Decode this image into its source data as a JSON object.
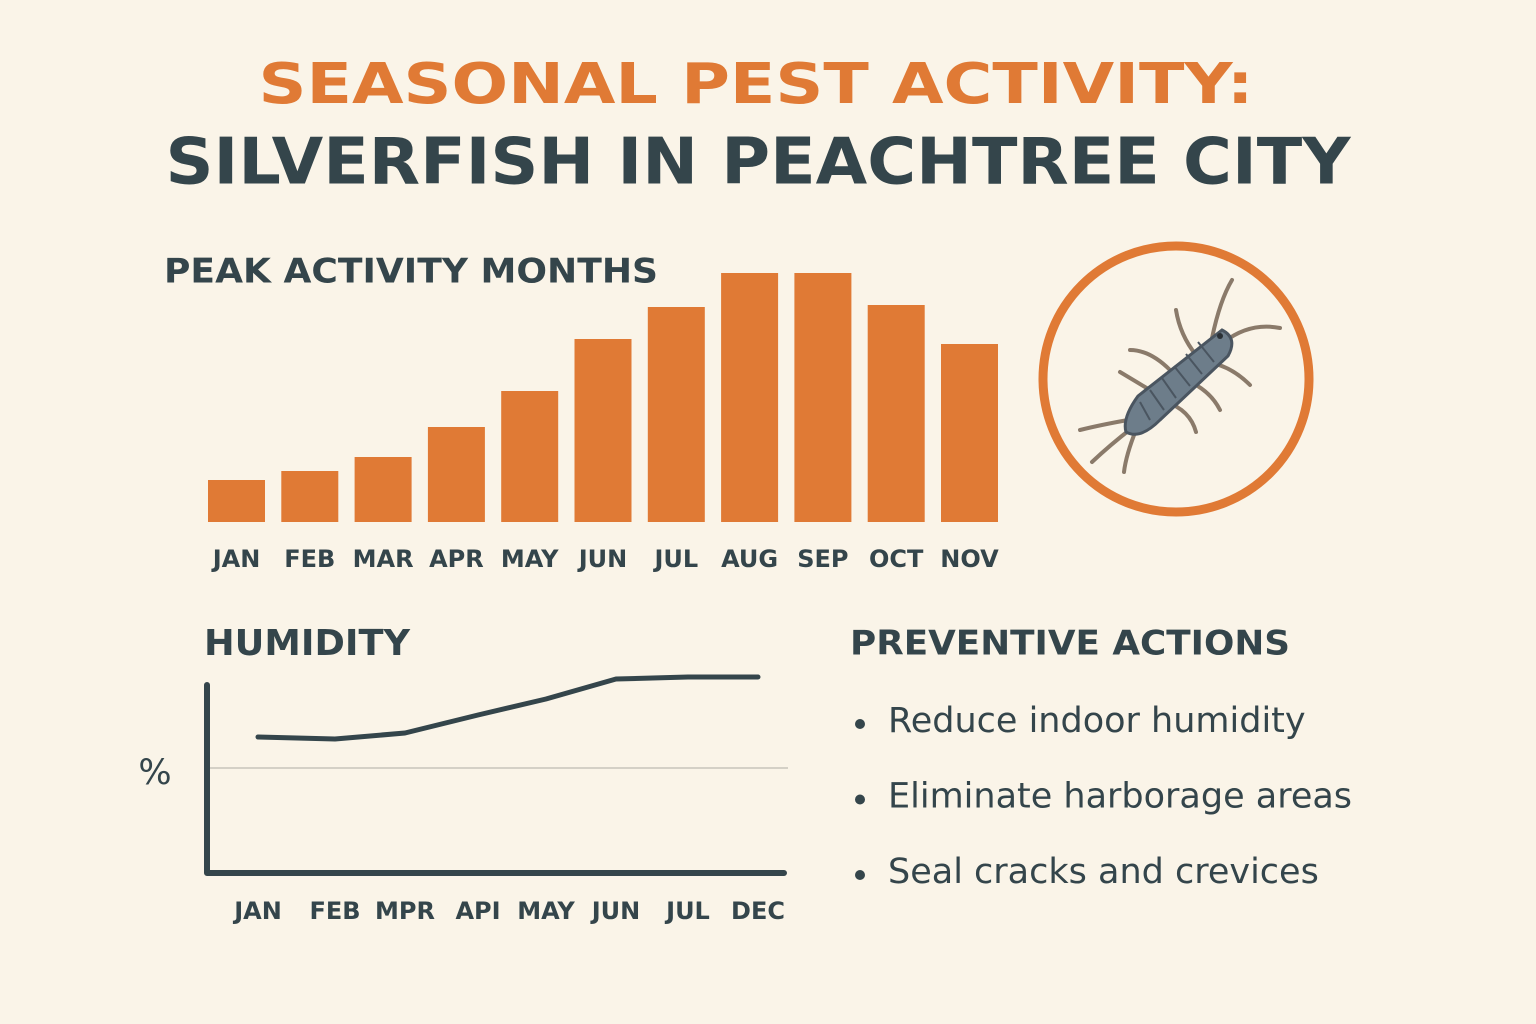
{
  "title_line1": "SEASONAL PEST ACTIVITY:",
  "title_line2": "SILVERFISH IN PEACHTREE CITY",
  "chart_data": [
    {
      "type": "bar",
      "title": "PEAK ACTIVITY MONTHS",
      "categories": [
        "JAN",
        "FEB",
        "MAR",
        "APR",
        "MAY",
        "JUN",
        "JUL",
        "AUG",
        "SEP",
        "OCT",
        "NOV"
      ],
      "values": [
        42,
        51,
        65,
        95,
        131,
        183,
        215,
        249,
        249,
        217,
        178
      ],
      "color": "#e07a35"
    },
    {
      "type": "line",
      "title": "HUMIDITY",
      "y_label": "%",
      "categories": [
        "JAN",
        "FEB",
        "MPR",
        "API",
        "MAY",
        "JUN",
        "JUL",
        "DEC"
      ],
      "values": [
        68,
        67,
        70,
        79,
        87,
        97,
        98,
        98
      ],
      "ylim": [
        0,
        100
      ],
      "color": "#34454b"
    }
  ],
  "actions": {
    "title": "PREVENTIVE ACTIONS",
    "items": [
      "Reduce indoor humidity",
      "Eliminate harborage areas",
      "Seal cracks and crevices"
    ]
  }
}
